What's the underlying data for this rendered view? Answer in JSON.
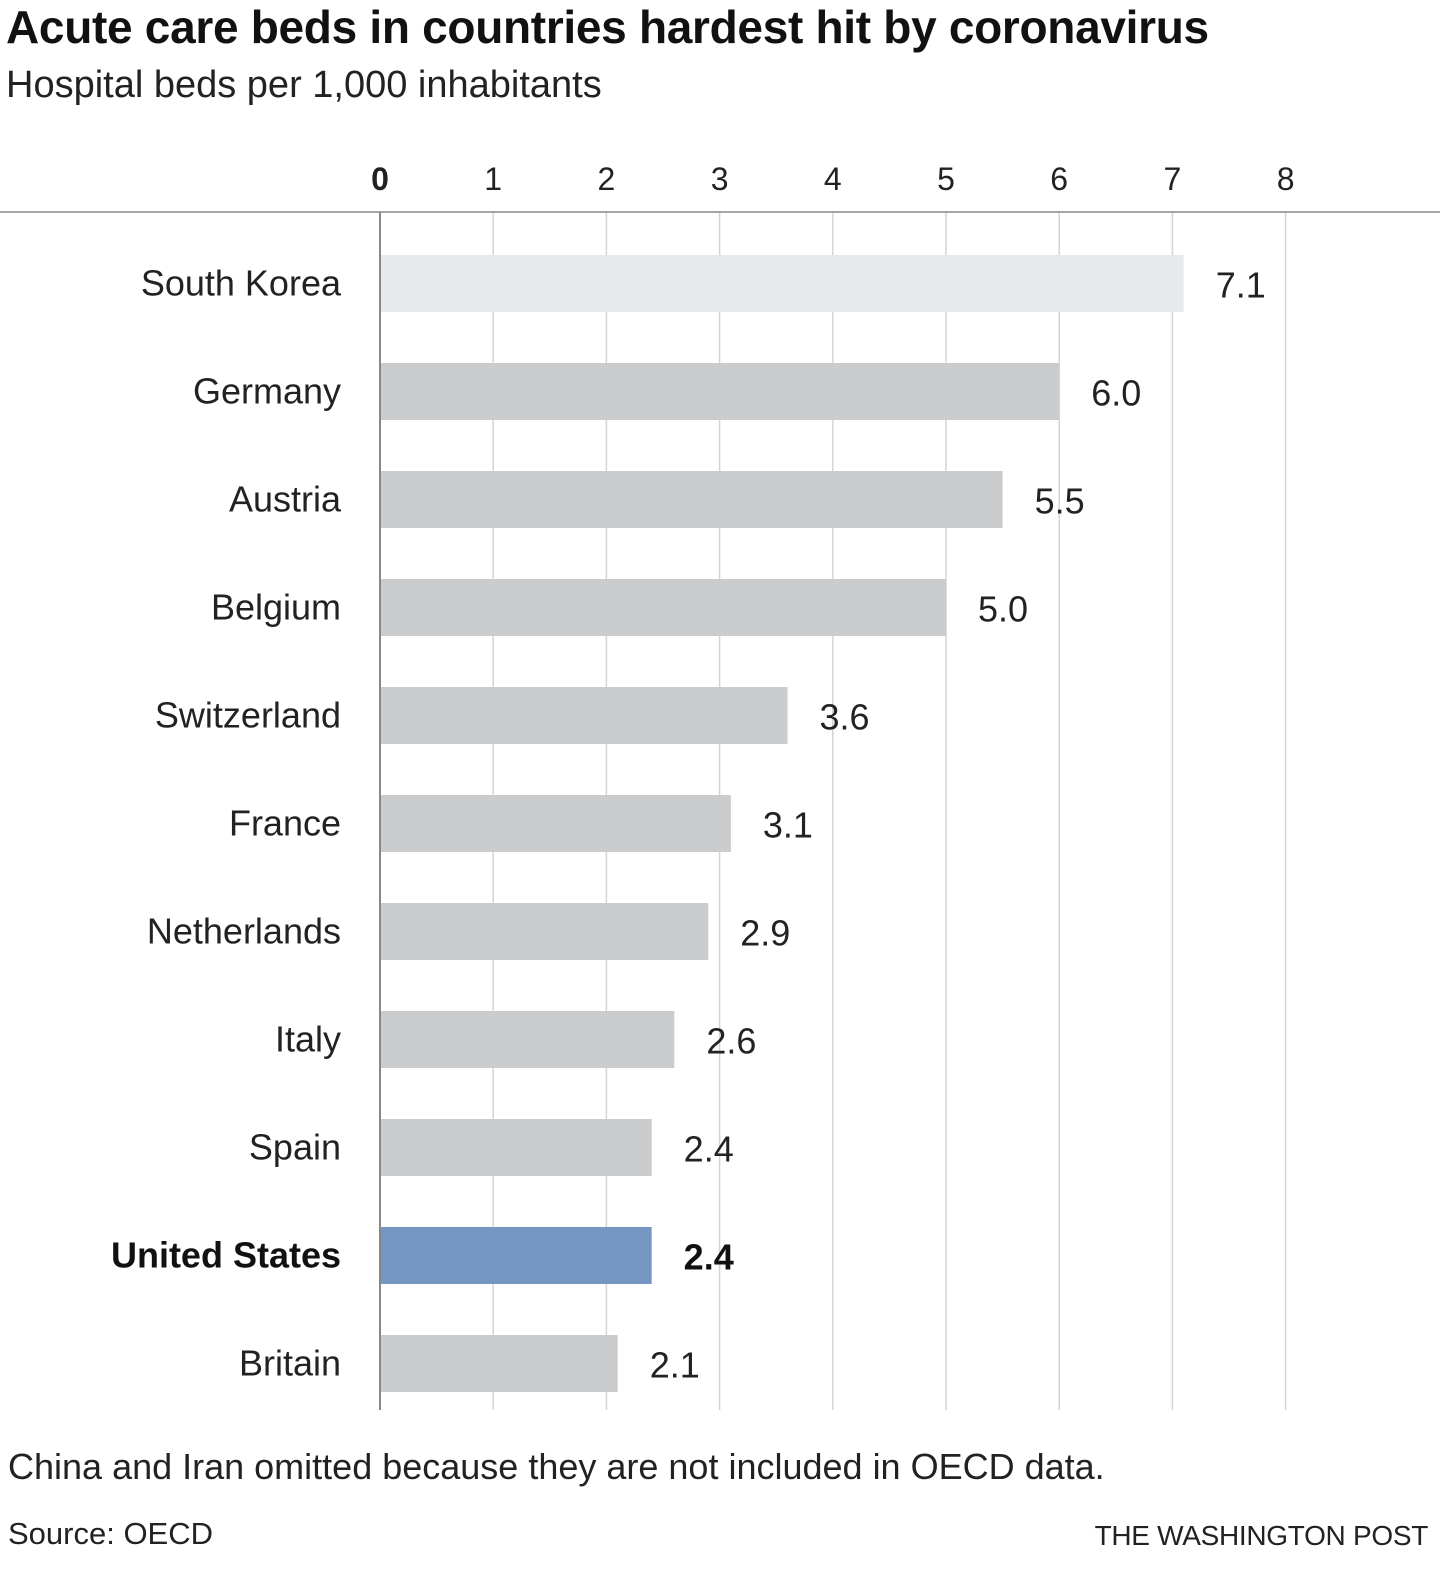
{
  "header": {
    "title": "Acute care beds in countries hardest hit by coronavirus",
    "subtitle": "Hospital beds per 1,000 inhabitants"
  },
  "footer": {
    "note": "China and Iran omitted because they are not included in OECD data.",
    "source": "Source: OECD",
    "credit": "THE WASHINGTON POST"
  },
  "colors": {
    "bar": "#cbccce",
    "bar_top": "#e8e9eb",
    "bar_highlight": "#7596c2",
    "grid": "#d4d4d4",
    "axis": "#888888"
  },
  "chart_data": {
    "type": "bar",
    "orientation": "horizontal",
    "title": "Acute care beds in countries hardest hit by coronavirus",
    "subtitle": "Hospital beds per 1,000 inhabitants",
    "xlabel": "",
    "ylabel": "",
    "xlim": [
      0,
      8
    ],
    "ticks": [
      0,
      1,
      2,
      3,
      4,
      5,
      6,
      7,
      8
    ],
    "tick_labels": [
      "0",
      "1",
      "2",
      "3",
      "4",
      "5",
      "6",
      "7",
      "8"
    ],
    "axis_position": "top",
    "grid": true,
    "categories": [
      "South Korea",
      "Germany",
      "Austria",
      "Belgium",
      "Switzerland",
      "France",
      "Netherlands",
      "Italy",
      "Spain",
      "United States",
      "Britain"
    ],
    "values": [
      7.1,
      6.0,
      5.5,
      5.0,
      3.6,
      3.1,
      2.9,
      2.6,
      2.4,
      2.4,
      2.1
    ],
    "value_labels": [
      "7.1",
      "6.0",
      "5.5",
      "5.0",
      "3.6",
      "3.1",
      "2.9",
      "2.6",
      "2.4",
      "2.4",
      "2.1"
    ],
    "highlight": "United States",
    "lightest": "South Korea"
  }
}
